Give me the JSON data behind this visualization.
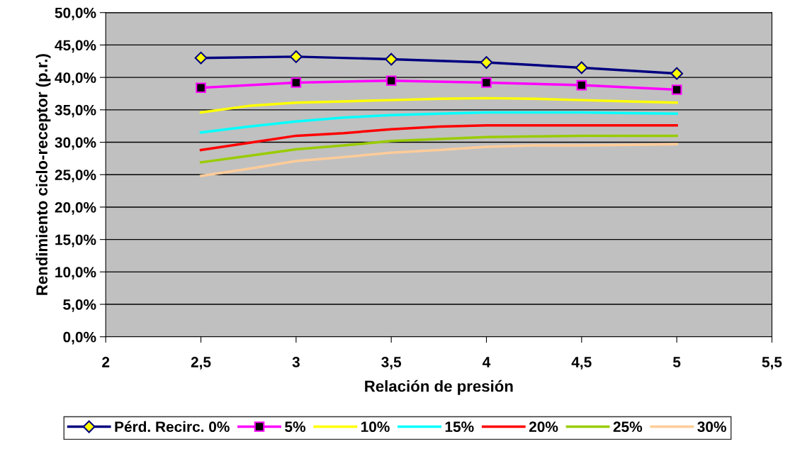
{
  "chart_data": {
    "type": "line",
    "xlabel": "Relación de presión",
    "ylabel": "Rendimiento ciclo-receptor (p.r.)",
    "xlim": [
      2,
      5.5
    ],
    "xticks": [
      2,
      {
        "value": 2.5,
        "label": "2,5"
      },
      3,
      {
        "value": 3.5,
        "label": "3,5"
      },
      4,
      {
        "value": 4.5,
        "label": "4,5"
      },
      5,
      {
        "value": 5.5,
        "label": "5,5"
      }
    ],
    "ylim": [
      0,
      50
    ],
    "yticks": [
      {
        "value": 0,
        "label": "0,0%"
      },
      {
        "value": 5,
        "label": "5,0%"
      },
      {
        "value": 10,
        "label": "10,0%"
      },
      {
        "value": 15,
        "label": "15,0%"
      },
      {
        "value": 20,
        "label": "20,0%"
      },
      {
        "value": 25,
        "label": "25,0%"
      },
      {
        "value": 30,
        "label": "30,0%"
      },
      {
        "value": 35,
        "label": "35,0%"
      },
      {
        "value": 40,
        "label": "40,0%"
      },
      {
        "value": 45,
        "label": "45,0%"
      },
      {
        "value": 50,
        "label": "50,0%"
      }
    ],
    "x": [
      2.5,
      2.75,
      3,
      3.25,
      3.5,
      3.75,
      4,
      4.25,
      4.5,
      4.75,
      5
    ],
    "grid": "y",
    "legend": "bottom",
    "series": [
      {
        "name": "Pérd. Recirc. 0%",
        "color": "#000080",
        "marker": "diamond",
        "x": [
          2.5,
          3,
          3.5,
          4,
          4.5,
          5
        ],
        "values": [
          43.0,
          43.2,
          42.8,
          42.3,
          41.5,
          40.6
        ]
      },
      {
        "name": "5%",
        "color": "#ff00ff",
        "marker": "square",
        "x": [
          2.5,
          3,
          3.5,
          4,
          4.5,
          5
        ],
        "values": [
          38.4,
          39.2,
          39.5,
          39.2,
          38.8,
          38.1
        ]
      },
      {
        "name": "10%",
        "color": "#ffff00",
        "values": [
          34.6,
          35.6,
          36.1,
          36.3,
          36.5,
          36.7,
          36.8,
          36.7,
          36.5,
          36.3,
          36.1
        ]
      },
      {
        "name": "15%",
        "color": "#00ffff",
        "values": [
          31.5,
          32.4,
          33.2,
          33.8,
          34.2,
          34.4,
          34.6,
          34.6,
          34.6,
          34.5,
          34.4
        ]
      },
      {
        "name": "20%",
        "color": "#ff0000",
        "values": [
          28.8,
          29.9,
          31.0,
          31.4,
          32.0,
          32.4,
          32.6,
          32.6,
          32.6,
          32.6,
          32.6
        ]
      },
      {
        "name": "25%",
        "color": "#99cc00",
        "values": [
          26.9,
          27.9,
          28.9,
          29.5,
          30.2,
          30.5,
          30.8,
          30.9,
          31.0,
          31.0,
          31.0
        ]
      },
      {
        "name": "30%",
        "color": "#ffcc99",
        "values": [
          24.8,
          25.9,
          27.1,
          27.7,
          28.4,
          28.8,
          29.3,
          29.5,
          29.5,
          29.6,
          29.7
        ]
      }
    ]
  }
}
